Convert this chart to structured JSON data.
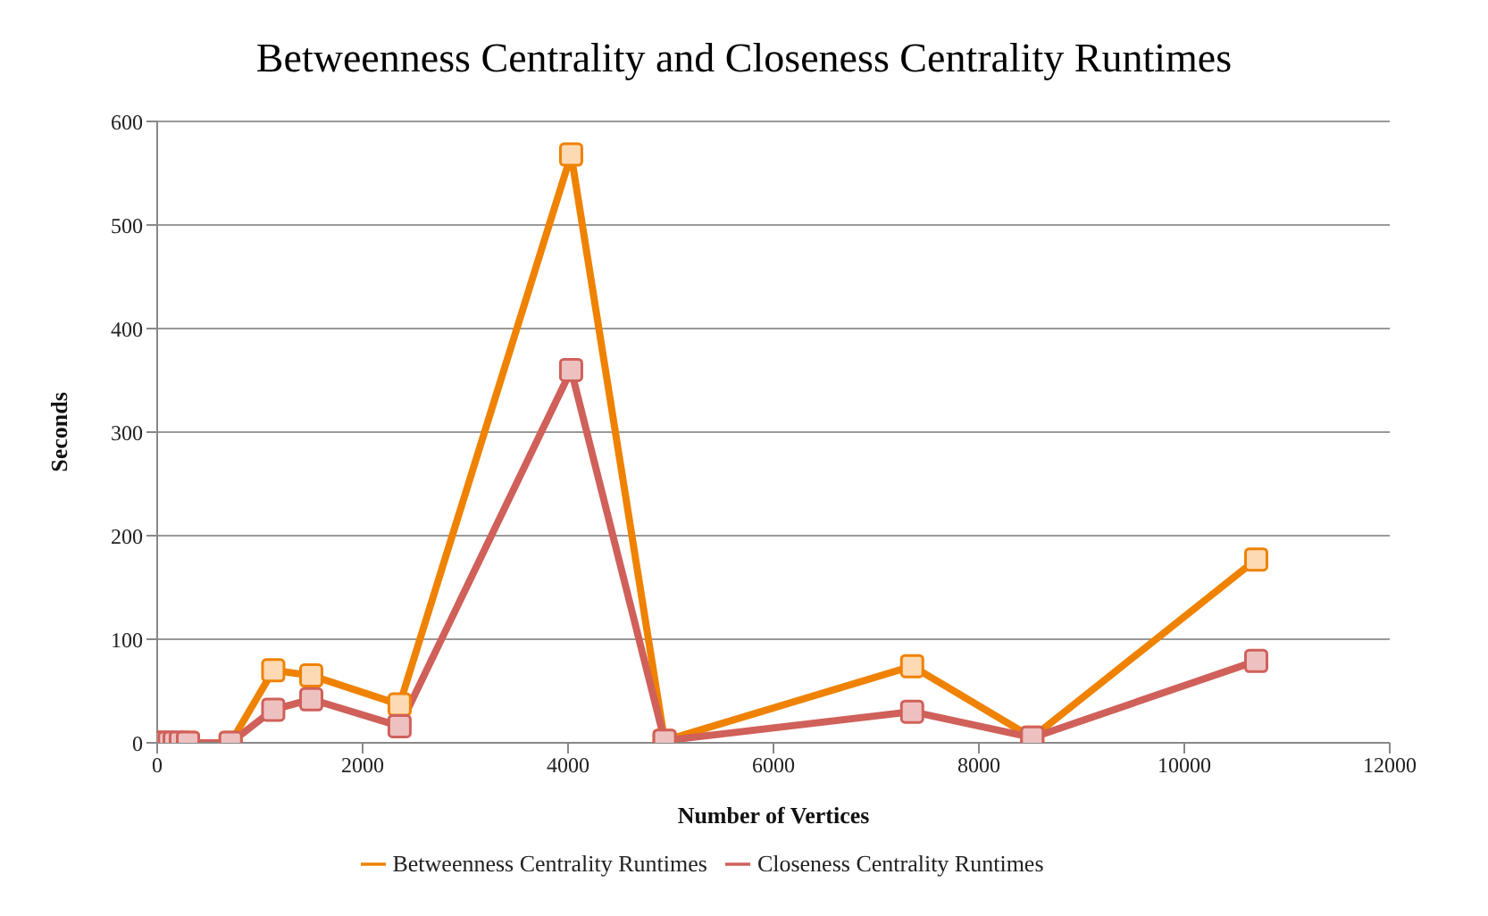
{
  "chart_data": {
    "type": "line",
    "title": "Betweenness Centrality and Closeness Centrality Runtimes",
    "xlabel": "Number of Vertices",
    "ylabel": "Seconds",
    "x": [
      0,
      40,
      80,
      120,
      170,
      230,
      300,
      715,
      1130,
      1500,
      2360,
      4030,
      4940,
      7350,
      8520,
      10700
    ],
    "series": [
      {
        "name": "Betweenness Centrality Runtimes",
        "color": "#ef8200",
        "values": [
          null,
          null,
          null,
          null,
          null,
          null,
          0,
          0,
          70,
          65,
          37,
          568,
          2,
          74,
          5,
          177
        ]
      },
      {
        "name": "Closeness Centrality Runtimes",
        "color": "#d0605a",
        "values": [
          0,
          0,
          0,
          0,
          0,
          0,
          0,
          0,
          32,
          42,
          16,
          360,
          2,
          30,
          5,
          79
        ]
      }
    ],
    "xlim": [
      0,
      12000
    ],
    "xticks": [
      0,
      2000,
      4000,
      6000,
      8000,
      10000,
      12000
    ],
    "ylim": [
      0,
      600
    ],
    "yticks": [
      0,
      100,
      200,
      300,
      400,
      500,
      600
    ],
    "grid": "y",
    "legend": "bottom",
    "marker": "square",
    "line_style": "solid"
  }
}
